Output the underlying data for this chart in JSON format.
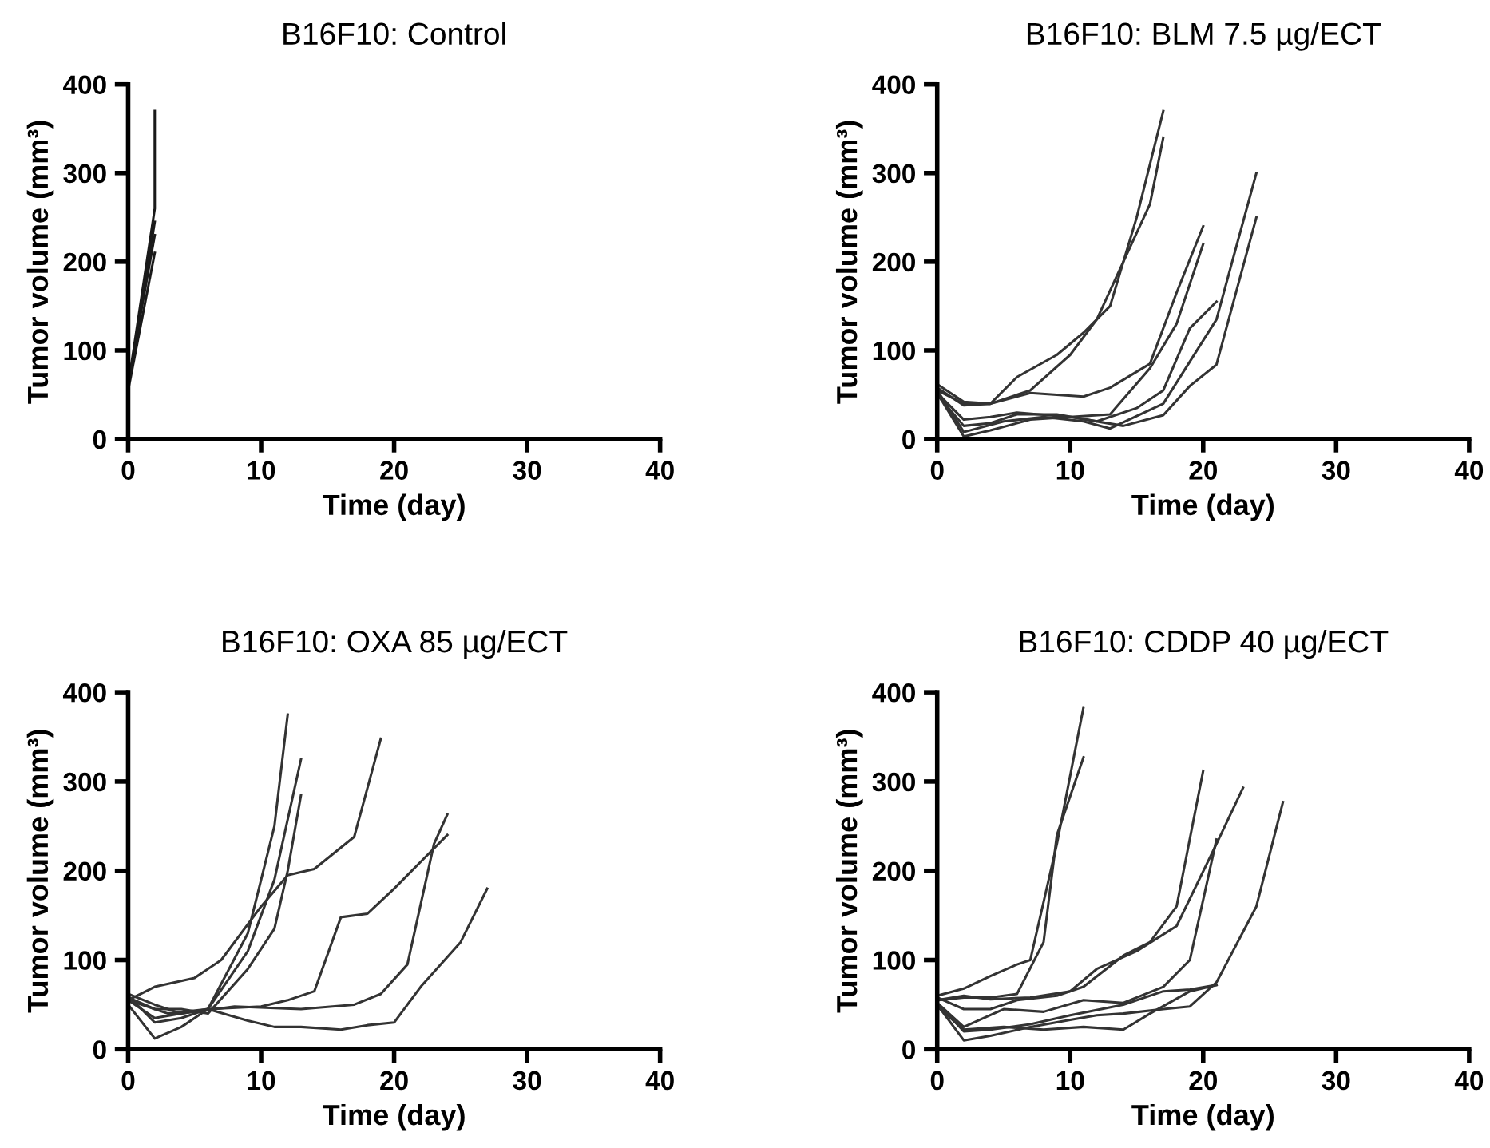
{
  "chart_data": [
    {
      "type": "line",
      "title": "B16F10: Control",
      "xlabel": "Time (day)",
      "ylabel": "Tumor volume (mm³)",
      "xlim": [
        0,
        40
      ],
      "ylim": [
        0,
        400
      ],
      "xticks": [
        0,
        10,
        20,
        30,
        40
      ],
      "yticks": [
        0,
        100,
        200,
        300,
        400
      ],
      "grid": false,
      "marker": "none",
      "line_style": "solid",
      "series": [
        {
          "color": "#1a1a1a",
          "x": [
            0,
            2,
            2
          ],
          "values": [
            60,
            260,
            370
          ]
        },
        {
          "color": "#1a1a1a",
          "x": [
            0,
            2
          ],
          "values": [
            55,
            210
          ]
        },
        {
          "color": "#1a1a1a",
          "x": [
            0,
            2
          ],
          "values": [
            62,
            230
          ]
        },
        {
          "color": "#1a1a1a",
          "x": [
            0,
            2
          ],
          "values": [
            58,
            245
          ]
        }
      ]
    },
    {
      "type": "line",
      "title": "B16F10: BLM 7.5 µg/ECT",
      "xlabel": "Time (day)",
      "ylabel": "Tumor volume (mm³)",
      "xlim": [
        0,
        40
      ],
      "ylim": [
        0,
        400
      ],
      "xticks": [
        0,
        10,
        20,
        30,
        40
      ],
      "yticks": [
        0,
        100,
        200,
        300,
        400
      ],
      "grid": false,
      "marker": "none",
      "line_style": "solid",
      "series": [
        {
          "color": "#333333",
          "x": [
            0,
            2,
            4,
            6,
            9,
            11,
            13,
            15,
            17
          ],
          "values": [
            62,
            42,
            40,
            70,
            95,
            120,
            150,
            250,
            370
          ]
        },
        {
          "color": "#333333",
          "x": [
            0,
            2,
            4,
            7,
            10,
            12,
            14,
            16,
            17
          ],
          "values": [
            58,
            38,
            40,
            55,
            95,
            135,
            200,
            265,
            340
          ]
        },
        {
          "color": "#333333",
          "x": [
            0,
            2,
            4,
            7,
            11,
            13,
            16,
            18,
            20
          ],
          "values": [
            55,
            40,
            40,
            52,
            48,
            58,
            85,
            165,
            240
          ]
        },
        {
          "color": "#333333",
          "x": [
            0,
            2,
            4,
            6,
            10,
            13,
            16,
            18,
            20
          ],
          "values": [
            52,
            22,
            25,
            30,
            25,
            28,
            80,
            130,
            220
          ]
        },
        {
          "color": "#333333",
          "x": [
            0,
            2,
            4,
            6,
            9,
            12,
            15,
            17,
            19,
            21
          ],
          "values": [
            50,
            15,
            18,
            28,
            28,
            20,
            35,
            55,
            125,
            155
          ]
        },
        {
          "color": "#333333",
          "x": [
            0,
            2,
            5,
            8,
            11,
            13,
            17,
            21,
            24
          ],
          "values": [
            55,
            8,
            20,
            25,
            20,
            12,
            40,
            135,
            300
          ]
        },
        {
          "color": "#333333",
          "x": [
            0,
            2,
            4,
            7,
            10,
            14,
            17,
            19,
            21,
            24
          ],
          "values": [
            52,
            3,
            10,
            22,
            25,
            15,
            27,
            60,
            84,
            250
          ]
        }
      ]
    },
    {
      "type": "line",
      "title": "B16F10: OXA 85 µg/ECT",
      "xlabel": "Time (day)",
      "ylabel": "Tumor volume (mm³)",
      "xlim": [
        0,
        40
      ],
      "ylim": [
        0,
        400
      ],
      "xticks": [
        0,
        10,
        20,
        30,
        40
      ],
      "yticks": [
        0,
        100,
        200,
        300,
        400
      ],
      "grid": false,
      "marker": "none",
      "line_style": "solid",
      "series": [
        {
          "color": "#333333",
          "x": [
            0,
            1,
            2,
            4,
            6,
            9,
            11,
            12
          ],
          "values": [
            60,
            45,
            30,
            35,
            45,
            130,
            250,
            375
          ]
        },
        {
          "color": "#333333",
          "x": [
            0,
            2,
            4,
            6,
            9,
            11,
            13
          ],
          "values": [
            55,
            35,
            40,
            45,
            110,
            190,
            325
          ]
        },
        {
          "color": "#333333",
          "x": [
            0,
            2,
            4,
            6,
            9,
            11,
            12,
            13
          ],
          "values": [
            58,
            45,
            45,
            40,
            90,
            135,
            200,
            285
          ]
        },
        {
          "color": "#333333",
          "x": [
            0,
            2,
            5,
            7,
            10,
            12,
            14,
            17,
            19
          ],
          "values": [
            55,
            70,
            80,
            100,
            160,
            195,
            202,
            238,
            348
          ]
        },
        {
          "color": "#333333",
          "x": [
            0,
            2,
            4,
            6,
            10,
            12,
            14,
            16,
            18,
            20,
            22,
            24
          ],
          "values": [
            50,
            12,
            25,
            45,
            48,
            55,
            65,
            148,
            152,
            180,
            210,
            240
          ]
        },
        {
          "color": "#333333",
          "x": [
            0,
            2,
            4,
            8,
            13,
            17,
            19,
            21,
            23,
            24
          ],
          "values": [
            62,
            50,
            40,
            48,
            45,
            50,
            62,
            95,
            230,
            263
          ]
        },
        {
          "color": "#333333",
          "x": [
            0,
            3,
            6,
            9,
            11,
            13,
            16,
            18,
            20,
            22,
            25,
            27
          ],
          "values": [
            55,
            40,
            45,
            32,
            25,
            25,
            22,
            27,
            30,
            70,
            120,
            180
          ]
        }
      ]
    },
    {
      "type": "line",
      "title": "B16F10: CDDP 40 µg/ECT",
      "xlabel": "Time (day)",
      "ylabel": "Tumor volume (mm³)",
      "xlim": [
        0,
        40
      ],
      "ylim": [
        0,
        400
      ],
      "xticks": [
        0,
        10,
        20,
        30,
        40
      ],
      "yticks": [
        0,
        100,
        200,
        300,
        400
      ],
      "grid": false,
      "marker": "none",
      "line_style": "solid",
      "series": [
        {
          "color": "#333333",
          "x": [
            0,
            2,
            4,
            6,
            7,
            9,
            11
          ],
          "values": [
            60,
            68,
            82,
            95,
            100,
            230,
            383
          ]
        },
        {
          "color": "#333333",
          "x": [
            0,
            2,
            4,
            6,
            8,
            9,
            11
          ],
          "values": [
            55,
            58,
            58,
            62,
            120,
            240,
            327
          ]
        },
        {
          "color": "#333333",
          "x": [
            0,
            2,
            4,
            6,
            9,
            11,
            14,
            16,
            18,
            20
          ],
          "values": [
            58,
            45,
            45,
            55,
            60,
            70,
            105,
            120,
            160,
            312
          ]
        },
        {
          "color": "#333333",
          "x": [
            0,
            2,
            4,
            7,
            10,
            12,
            15,
            18,
            21,
            23
          ],
          "values": [
            55,
            60,
            56,
            58,
            65,
            90,
            110,
            138,
            230,
            293
          ]
        },
        {
          "color": "#333333",
          "x": [
            0,
            2,
            5,
            8,
            11,
            14,
            17,
            19,
            21
          ],
          "values": [
            52,
            25,
            45,
            42,
            55,
            52,
            70,
            100,
            235
          ]
        },
        {
          "color": "#333333",
          "x": [
            0,
            2,
            4,
            7,
            10,
            12,
            14,
            17,
            19,
            21,
            24,
            26
          ],
          "values": [
            50,
            10,
            15,
            25,
            33,
            38,
            40,
            45,
            48,
            75,
            160,
            277
          ]
        },
        {
          "color": "#333333",
          "x": [
            0,
            2,
            5,
            8,
            11,
            14,
            16,
            19,
            21
          ],
          "values": [
            48,
            22,
            25,
            22,
            25,
            22,
            40,
            65,
            72
          ]
        },
        {
          "color": "#333333",
          "x": [
            0,
            2,
            4,
            7,
            10,
            14,
            17,
            19,
            21
          ],
          "values": [
            52,
            20,
            22,
            28,
            38,
            50,
            65,
            67,
            72
          ]
        }
      ]
    }
  ]
}
